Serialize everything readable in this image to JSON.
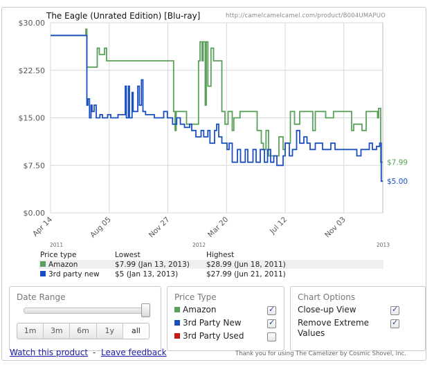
{
  "title": "The Eagle (Unrated Edition) [Blu-ray]",
  "url": "http://camelcamelcamel.com/product/B004UMAPUO",
  "colors": {
    "amazon": "#5aa05a",
    "third_party_new": "#1a4fc2",
    "third_party_used": "#c41a1a"
  },
  "chart_data": {
    "type": "line",
    "ylim": [
      0,
      30
    ],
    "yticks": [
      "$30.00",
      "$22.50",
      "$15.00",
      "$7.50",
      "$0.00"
    ],
    "ytick_values": [
      30,
      22.5,
      15,
      7.5,
      0
    ],
    "xticks": [
      "Apr 14",
      "Aug 05",
      "Nov 27",
      "Mar 20",
      "Jul 12",
      "Nov 03"
    ],
    "xtick_positions": [
      0,
      113,
      226,
      339,
      452,
      565
    ],
    "xlim": [
      0,
      640
    ],
    "year_labels": [
      {
        "label": "2011",
        "day": 0
      },
      {
        "label": "2012",
        "day": 262
      },
      {
        "label": "2013",
        "day": 640
      }
    ],
    "x_origin_date": "2011-04-14",
    "series": [
      {
        "name": "Amazon",
        "end_label": "$7.99",
        "points": [
          [
            0,
            28
          ],
          [
            68,
            28
          ],
          [
            68,
            29
          ],
          [
            70,
            29
          ],
          [
            70,
            23
          ],
          [
            90,
            23
          ],
          [
            90,
            26
          ],
          [
            94,
            26
          ],
          [
            94,
            25
          ],
          [
            104,
            25
          ],
          [
            104,
            26
          ],
          [
            108,
            26
          ],
          [
            108,
            24
          ],
          [
            237,
            24
          ],
          [
            237,
            16
          ],
          [
            240,
            16
          ],
          [
            240,
            13
          ],
          [
            242,
            13
          ],
          [
            242,
            16
          ],
          [
            262,
            16
          ],
          [
            262,
            14
          ],
          [
            285,
            14
          ],
          [
            285,
            24
          ],
          [
            288,
            24
          ],
          [
            288,
            27
          ],
          [
            292,
            27
          ],
          [
            292,
            24
          ],
          [
            294,
            24
          ],
          [
            294,
            27
          ],
          [
            298,
            27
          ],
          [
            298,
            17
          ],
          [
            300,
            17
          ],
          [
            300,
            27
          ],
          [
            303,
            27
          ],
          [
            303,
            20
          ],
          [
            309,
            20
          ],
          [
            309,
            26
          ],
          [
            314,
            26
          ],
          [
            314,
            24
          ],
          [
            330,
            24
          ],
          [
            330,
            16
          ],
          [
            336,
            16
          ],
          [
            336,
            14
          ],
          [
            342,
            14
          ],
          [
            342,
            16
          ],
          [
            350,
            16
          ],
          [
            350,
            13
          ],
          [
            353,
            13
          ],
          [
            353,
            15
          ],
          [
            365,
            15
          ],
          [
            365,
            16
          ],
          [
            378,
            16
          ],
          [
            378,
            16
          ],
          [
            398,
            16
          ],
          [
            398,
            13
          ],
          [
            406,
            13
          ],
          [
            406,
            11
          ],
          [
            410,
            11
          ],
          [
            410,
            10
          ],
          [
            415,
            10
          ],
          [
            415,
            13
          ],
          [
            420,
            13
          ],
          [
            420,
            9
          ],
          [
            440,
            9
          ],
          [
            440,
            12
          ],
          [
            448,
            12
          ],
          [
            448,
            10
          ],
          [
            452,
            10
          ],
          [
            452,
            11
          ],
          [
            462,
            11
          ],
          [
            462,
            16
          ],
          [
            470,
            16
          ],
          [
            470,
            14
          ],
          [
            480,
            14
          ],
          [
            480,
            16
          ],
          [
            505,
            16
          ],
          [
            505,
            13
          ],
          [
            510,
            13
          ],
          [
            510,
            16
          ],
          [
            530,
            16
          ],
          [
            530,
            15
          ],
          [
            545,
            15
          ],
          [
            545,
            16
          ],
          [
            580,
            16
          ],
          [
            580,
            13
          ],
          [
            584,
            13
          ],
          [
            584,
            14
          ],
          [
            600,
            14
          ],
          [
            600,
            13
          ],
          [
            608,
            13
          ],
          [
            608,
            16
          ],
          [
            630,
            16
          ],
          [
            630,
            15
          ],
          [
            632,
            15
          ],
          [
            632,
            16.5
          ],
          [
            636,
            16.5
          ],
          [
            636,
            8
          ],
          [
            640,
            8
          ]
        ]
      },
      {
        "name": "3rd party new",
        "end_label": "$5.00",
        "points": [
          [
            0,
            28
          ],
          [
            68,
            28
          ],
          [
            68,
            28
          ],
          [
            70,
            28
          ],
          [
            70,
            17
          ],
          [
            72,
            17
          ],
          [
            72,
            18
          ],
          [
            75,
            18
          ],
          [
            75,
            15
          ],
          [
            78,
            15
          ],
          [
            78,
            17
          ],
          [
            80,
            17
          ],
          [
            80,
            16
          ],
          [
            84,
            16
          ],
          [
            84,
            17
          ],
          [
            88,
            17
          ],
          [
            88,
            15
          ],
          [
            95,
            15
          ],
          [
            95,
            15.5
          ],
          [
            100,
            15.5
          ],
          [
            100,
            15
          ],
          [
            110,
            15
          ],
          [
            110,
            15.5
          ],
          [
            116,
            15.5
          ],
          [
            116,
            15
          ],
          [
            130,
            15
          ],
          [
            130,
            15.5
          ],
          [
            144,
            15.5
          ],
          [
            144,
            20
          ],
          [
            146,
            20
          ],
          [
            146,
            15
          ],
          [
            150,
            15
          ],
          [
            150,
            20
          ],
          [
            152,
            20
          ],
          [
            152,
            15
          ],
          [
            157,
            15
          ],
          [
            157,
            19
          ],
          [
            159,
            19
          ],
          [
            159,
            16
          ],
          [
            168,
            16
          ],
          [
            168,
            20
          ],
          [
            171,
            20
          ],
          [
            171,
            17
          ],
          [
            175,
            17
          ],
          [
            175,
            21
          ],
          [
            178,
            21
          ],
          [
            178,
            16
          ],
          [
            183,
            16
          ],
          [
            183,
            15.5
          ],
          [
            200,
            15.5
          ],
          [
            200,
            15
          ],
          [
            218,
            15
          ],
          [
            218,
            16
          ],
          [
            225,
            16
          ],
          [
            225,
            15
          ],
          [
            235,
            15
          ],
          [
            235,
            14
          ],
          [
            243,
            14
          ],
          [
            243,
            15
          ],
          [
            250,
            15
          ],
          [
            250,
            14
          ],
          [
            258,
            14
          ],
          [
            258,
            13.5
          ],
          [
            268,
            13.5
          ],
          [
            268,
            14
          ],
          [
            272,
            14
          ],
          [
            272,
            13
          ],
          [
            280,
            13
          ],
          [
            280,
            12
          ],
          [
            290,
            12
          ],
          [
            290,
            13
          ],
          [
            295,
            13
          ],
          [
            295,
            12
          ],
          [
            303,
            12
          ],
          [
            303,
            13
          ],
          [
            307,
            13
          ],
          [
            307,
            11
          ],
          [
            316,
            11
          ],
          [
            316,
            13
          ],
          [
            320,
            13
          ],
          [
            320,
            14
          ],
          [
            324,
            14
          ],
          [
            324,
            12
          ],
          [
            330,
            12
          ],
          [
            330,
            11
          ],
          [
            340,
            11
          ],
          [
            340,
            10
          ],
          [
            344,
            10
          ],
          [
            344,
            11
          ],
          [
            350,
            11
          ],
          [
            350,
            8
          ],
          [
            360,
            8
          ],
          [
            360,
            10
          ],
          [
            366,
            10
          ],
          [
            366,
            8
          ],
          [
            375,
            8
          ],
          [
            375,
            10
          ],
          [
            380,
            10
          ],
          [
            380,
            8
          ],
          [
            390,
            8
          ],
          [
            390,
            10
          ],
          [
            396,
            10
          ],
          [
            396,
            8
          ],
          [
            404,
            8
          ],
          [
            404,
            10
          ],
          [
            412,
            10
          ],
          [
            412,
            8
          ],
          [
            418,
            8
          ],
          [
            418,
            10
          ],
          [
            424,
            10
          ],
          [
            424,
            8
          ],
          [
            430,
            8
          ],
          [
            430,
            9
          ],
          [
            436,
            9
          ],
          [
            436,
            7.5
          ],
          [
            448,
            7.5
          ],
          [
            448,
            9
          ],
          [
            452,
            9
          ],
          [
            452,
            11
          ],
          [
            460,
            11
          ],
          [
            460,
            9
          ],
          [
            466,
            9
          ],
          [
            466,
            10
          ],
          [
            474,
            10
          ],
          [
            474,
            13
          ],
          [
            480,
            13
          ],
          [
            480,
            11
          ],
          [
            488,
            11
          ],
          [
            488,
            12
          ],
          [
            494,
            12
          ],
          [
            494,
            11
          ],
          [
            500,
            11
          ],
          [
            500,
            10
          ],
          [
            510,
            10
          ],
          [
            510,
            11
          ],
          [
            524,
            11
          ],
          [
            524,
            10
          ],
          [
            540,
            10
          ],
          [
            540,
            11
          ],
          [
            548,
            11
          ],
          [
            548,
            10
          ],
          [
            560,
            10
          ],
          [
            560,
            10
          ],
          [
            590,
            10
          ],
          [
            590,
            9
          ],
          [
            598,
            9
          ],
          [
            598,
            10
          ],
          [
            614,
            10
          ],
          [
            614,
            11
          ],
          [
            620,
            11
          ],
          [
            620,
            10
          ],
          [
            628,
            10
          ],
          [
            628,
            10.5
          ],
          [
            634,
            10.5
          ],
          [
            634,
            11
          ],
          [
            637,
            11
          ],
          [
            637,
            5
          ],
          [
            640,
            5
          ]
        ]
      }
    ]
  },
  "legend": {
    "headers": [
      "Price type",
      "Lowest",
      "Highest"
    ],
    "rows": [
      {
        "name": "Amazon",
        "lowest": "$7.99 (Jan 13, 2013)",
        "highest": "$28.99 (Jun 18, 2011)"
      },
      {
        "name": "3rd party new",
        "lowest": "$5 (Jan 13, 2013)",
        "highest": "$27.99 (Jun 21, 2011)"
      }
    ]
  },
  "date_range": {
    "title": "Date Range",
    "buttons": [
      "1m",
      "3m",
      "6m",
      "1y",
      "all"
    ],
    "selected": "all"
  },
  "price_type": {
    "title": "Price Type",
    "items": [
      {
        "label": "Amazon",
        "checked": true
      },
      {
        "label": "3rd Party New",
        "checked": true
      },
      {
        "label": "3rd Party Used",
        "checked": false
      }
    ]
  },
  "chart_options": {
    "title": "Chart Options",
    "items": [
      {
        "label": "Close-up View",
        "checked": true
      },
      {
        "label": "Remove Extreme",
        "label2": "Values",
        "checked": true
      }
    ]
  },
  "footer": {
    "watch": "Watch this product",
    "separator": "-",
    "feedback": "Leave feedback",
    "thanks": "Thank you for using The Camelizer by Cosmic Shovel, Inc."
  }
}
